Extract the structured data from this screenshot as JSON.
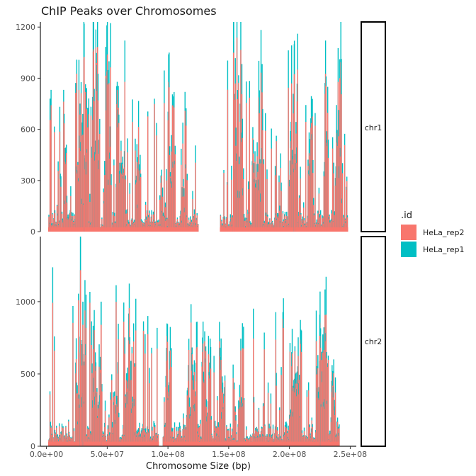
{
  "chart_data": {
    "type": "bar",
    "title": "ChIP Peaks over Chromosomes",
    "xlabel": "Chromosome Size (bp)",
    "ylabel": "",
    "xlim": [
      -5000000,
      255000000
    ],
    "x_ticks": [
      0,
      50000000,
      100000000,
      150000000,
      200000000,
      250000000
    ],
    "x_tick_labels": [
      "0.0e+00",
      "5.0e+07",
      "1.0e+08",
      "1.5e+08",
      "2.0e+08",
      "2.5e+08"
    ],
    "legend": {
      "title": ".id",
      "placement": "right",
      "entries": [
        {
          "name": "HeLa_rep2",
          "color": "#F8766D"
        },
        {
          "name": "HeLa_rep1",
          "color": "#00BFC4"
        }
      ]
    },
    "panels": [
      {
        "strip": "chr1",
        "ylim": [
          0,
          1230
        ],
        "y_ticks": [
          0,
          300,
          600,
          900,
          1200
        ],
        "y_tick_labels": [
          "0",
          "300",
          "600",
          "900",
          "1200"
        ],
        "x_range": [
          0,
          248956422
        ],
        "gap": [
          125000000,
          143000000
        ],
        "clusters": [
          [
            14000000,
            17000000,
            1000
          ],
          [
            24000000,
            34000000,
            1150
          ],
          [
            38000000,
            44000000,
            1100
          ],
          [
            48000000,
            53000000,
            1050
          ],
          [
            57000000,
            65000000,
            880
          ],
          [
            73000000,
            78000000,
            650
          ],
          [
            94000000,
            96000000,
            820
          ],
          [
            100000000,
            106000000,
            900
          ],
          [
            112000000,
            115000000,
            820
          ],
          [
            154000000,
            162000000,
            1150
          ],
          [
            169000000,
            178000000,
            950
          ],
          [
            200000000,
            207000000,
            1100
          ],
          [
            215000000,
            220000000,
            780
          ],
          [
            228000000,
            232000000,
            950
          ],
          [
            238000000,
            244000000,
            1000
          ]
        ],
        "peaks": [
          [
            3000000,
            780
          ],
          [
            31000000,
            1220
          ],
          [
            154000000,
            1250
          ],
          [
            204000000,
            1100
          ]
        ],
        "low": 55
      },
      {
        "strip": "chr2",
        "ylim": [
          0,
          1450
        ],
        "y_ticks": [
          0,
          500,
          1000
        ],
        "y_tick_labels": [
          "0",
          "500",
          "1000"
        ],
        "x_range": [
          0,
          242193529
        ],
        "gap": [
          92000000,
          96000000
        ],
        "clusters": [
          [
            24000000,
            33000000,
            1050
          ],
          [
            37000000,
            45000000,
            900
          ],
          [
            55000000,
            60000000,
            750
          ],
          [
            65000000,
            73000000,
            800
          ],
          [
            98000000,
            102000000,
            800
          ],
          [
            115000000,
            124000000,
            780
          ],
          [
            128000000,
            136000000,
            750
          ],
          [
            142000000,
            147000000,
            700
          ],
          [
            158000000,
            163000000,
            800
          ],
          [
            200000000,
            210000000,
            740
          ],
          [
            222000000,
            232000000,
            1000
          ],
          [
            234000000,
            238000000,
            750
          ]
        ],
        "peaks": [
          [
            28000000,
            1450
          ],
          [
            30000000,
            1000
          ],
          [
            45000000,
            1000
          ],
          [
            225000000,
            910
          ]
        ],
        "low": 70
      }
    ]
  }
}
